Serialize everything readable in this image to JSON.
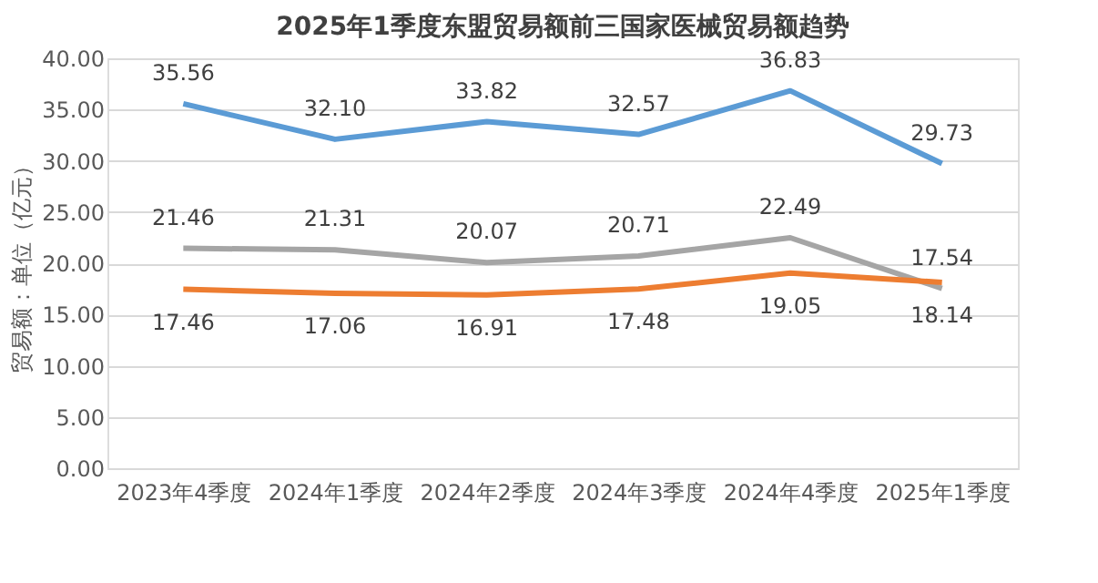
{
  "chart_data": {
    "type": "line",
    "title": "2025年1季度东盟贸易额前三国家医械贸易额趋势",
    "ylabel": "贸易额：单位（亿元）",
    "categories": [
      "2023年4季度",
      "2024年1季度",
      "2024年2季度",
      "2024年3季度",
      "2024年4季度",
      "2025年1季度"
    ],
    "series": [
      {
        "color": "#5b9bd5",
        "values": [
          35.56,
          32.1,
          33.82,
          32.57,
          36.83,
          29.73
        ],
        "value_labels": [
          "35.56",
          "32.10",
          "33.82",
          "32.57",
          "36.83",
          "29.73"
        ]
      },
      {
        "color": "#a5a5a5",
        "values": [
          21.46,
          21.31,
          20.07,
          20.71,
          22.49,
          17.54
        ],
        "value_labels": [
          "21.46",
          "21.31",
          "20.07",
          "20.71",
          "22.49",
          "17.54"
        ]
      },
      {
        "color": "#ed7d31",
        "values": [
          17.46,
          17.06,
          16.91,
          17.48,
          19.05,
          18.14
        ],
        "value_labels": [
          "17.46",
          "17.06",
          "16.91",
          "17.48",
          "19.05",
          "18.14"
        ]
      }
    ],
    "ylim": [
      0,
      40
    ],
    "yticks": [
      {
        "value": 0,
        "label": "0.00"
      },
      {
        "value": 5,
        "label": "5.00"
      },
      {
        "value": 10,
        "label": "10.00"
      },
      {
        "value": 15,
        "label": "15.00"
      },
      {
        "value": 20,
        "label": "20.00"
      },
      {
        "value": 25,
        "label": "25.00"
      },
      {
        "value": 30,
        "label": "30.00"
      },
      {
        "value": 35,
        "label": "35.00"
      },
      {
        "value": 40,
        "label": "40.00"
      }
    ],
    "grid": "y",
    "marker": "none",
    "line_style": "solid"
  }
}
